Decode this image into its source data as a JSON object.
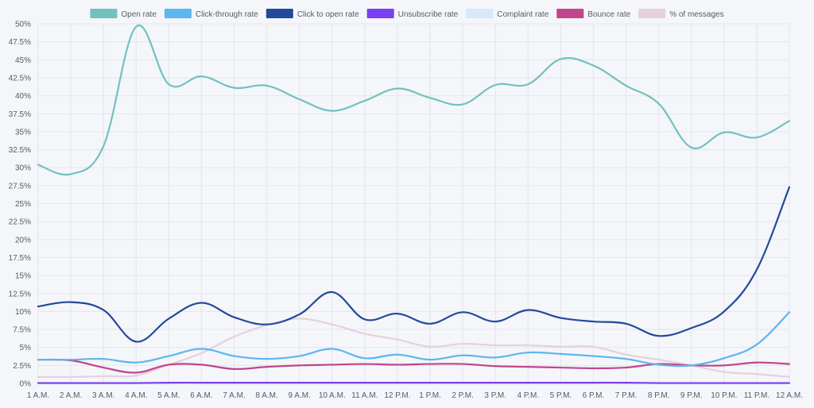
{
  "chart_data": {
    "type": "line",
    "x": [
      "1 A.M.",
      "2 A.M.",
      "3 A.M.",
      "4 A.M.",
      "5 A.M.",
      "6 A.M.",
      "7 A.M.",
      "8 A.M.",
      "9 A.M.",
      "10 A.M.",
      "11 A.M.",
      "12 P.M.",
      "1 P.M.",
      "2 P.M.",
      "3 P.M.",
      "4 P.M.",
      "5 P.M.",
      "6 P.M.",
      "7 P.M.",
      "8 P.M.",
      "9 P.M.",
      "10 P.M.",
      "11 P.M.",
      "12 A.M."
    ],
    "y_ticks": [
      "0%",
      "2.5%",
      "5%",
      "7.5%",
      "10%",
      "12.5%",
      "15%",
      "17.5%",
      "20%",
      "22.5%",
      "25%",
      "27.5%",
      "30%",
      "32.5%",
      "35%",
      "37.5%",
      "40%",
      "42.5%",
      "45%",
      "47.5%",
      "50%"
    ],
    "ylim": [
      0,
      50
    ],
    "grid": true,
    "legend_position": "top-center",
    "series": [
      {
        "name": "Open rate",
        "color": "#72c1bf",
        "values": [
          30.4,
          29.1,
          33.0,
          49.6,
          41.6,
          42.7,
          41.1,
          41.4,
          39.5,
          37.9,
          39.3,
          41.0,
          39.7,
          38.8,
          41.5,
          41.6,
          45.1,
          44.2,
          41.4,
          38.9,
          32.8,
          34.9,
          34.2,
          36.5
        ]
      },
      {
        "name": "Click-through rate",
        "color": "#5bb6f2",
        "values": [
          3.3,
          3.3,
          3.4,
          2.9,
          3.8,
          4.8,
          3.8,
          3.4,
          3.8,
          4.8,
          3.5,
          4.0,
          3.3,
          3.9,
          3.6,
          4.3,
          4.1,
          3.8,
          3.4,
          2.6,
          2.5,
          3.5,
          5.4,
          9.9
        ]
      },
      {
        "name": "Click to open rate",
        "color": "#24499a",
        "values": [
          10.7,
          11.3,
          10.2,
          5.8,
          9.0,
          11.2,
          9.2,
          8.2,
          9.6,
          12.7,
          8.9,
          9.7,
          8.3,
          9.9,
          8.6,
          10.2,
          9.1,
          8.6,
          8.3,
          6.6,
          7.7,
          10.0,
          15.8,
          27.3
        ]
      },
      {
        "name": "Unsubscribe rate",
        "color": "#7a3ff2",
        "values": [
          0.05,
          0.05,
          0.05,
          0.05,
          0.1,
          0.1,
          0.1,
          0.1,
          0.1,
          0.1,
          0.1,
          0.1,
          0.1,
          0.1,
          0.1,
          0.1,
          0.1,
          0.1,
          0.1,
          0.05,
          0.05,
          0.05,
          0.05,
          0.05
        ]
      },
      {
        "name": "Complaint rate",
        "color": "#d6e9f8",
        "values": [
          0,
          0,
          0,
          0,
          0,
          0,
          0,
          0,
          0,
          0,
          0,
          0,
          0,
          0,
          0,
          0,
          0,
          0,
          0,
          0,
          0,
          0,
          0,
          0
        ]
      },
      {
        "name": "Bounce rate",
        "color": "#c0458a",
        "values": [
          3.3,
          3.2,
          2.2,
          1.5,
          2.6,
          2.6,
          2.0,
          2.3,
          2.5,
          2.6,
          2.7,
          2.6,
          2.7,
          2.7,
          2.4,
          2.3,
          2.2,
          2.1,
          2.2,
          2.7,
          2.5,
          2.5,
          2.9,
          2.7
        ]
      },
      {
        "name": "% of messages",
        "color": "#e6d0dc",
        "values": [
          0.9,
          0.9,
          1.0,
          1.1,
          2.6,
          4.2,
          6.5,
          8.1,
          9.0,
          8.2,
          6.9,
          6.1,
          5.1,
          5.5,
          5.3,
          5.3,
          5.1,
          5.1,
          4.0,
          3.3,
          2.5,
          1.6,
          1.3,
          0.9
        ]
      }
    ]
  }
}
